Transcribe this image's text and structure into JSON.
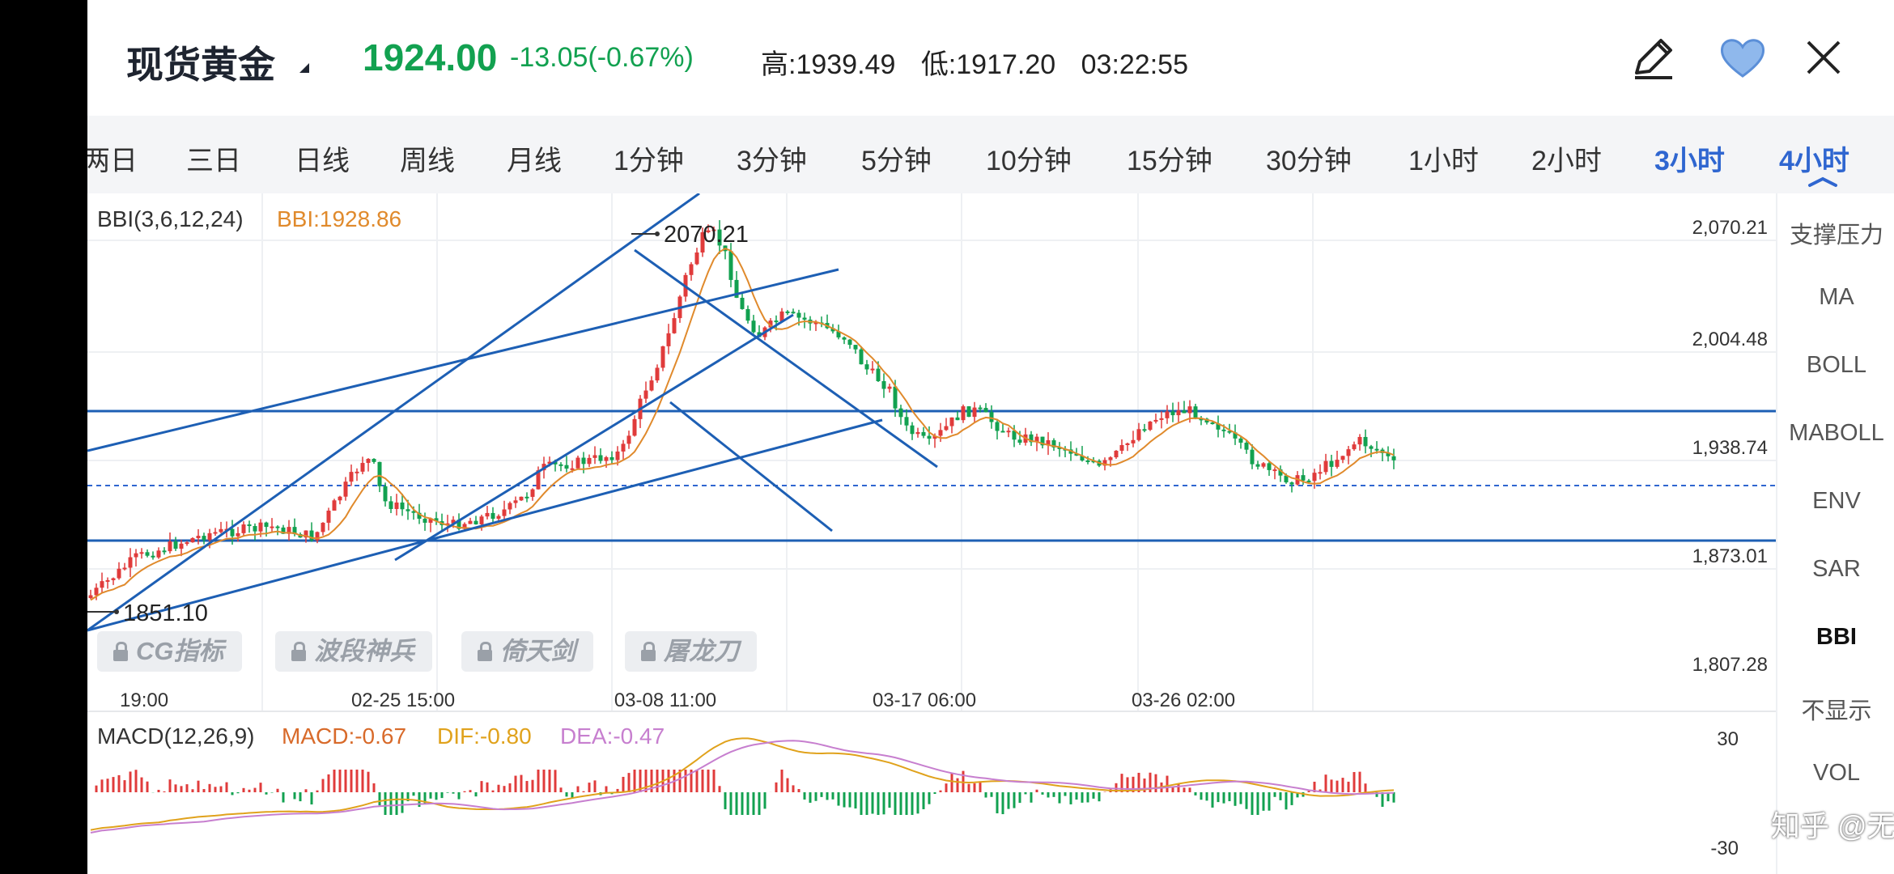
{
  "header": {
    "title": "现货黄金",
    "price": "1924.00",
    "change": "-13.05(-0.67%)",
    "high": "高:1939.49",
    "low": "低:1917.20",
    "time": "03:22:55",
    "icons": [
      "edit-icon",
      "heart-icon",
      "close-icon"
    ]
  },
  "tabs": [
    "两日",
    "三日",
    "日线",
    "周线",
    "月线",
    "1分钟",
    "3分钟",
    "5分钟",
    "10分钟",
    "15分钟",
    "30分钟",
    "1小时",
    "2小时",
    "3小时",
    "4小时"
  ],
  "active_tab": "4小时",
  "main_chart": {
    "indicator_label": "BBI(3,6,12,24)",
    "indicator_value": "BBI:1928.86",
    "max_marker": "2070.21",
    "min_marker": "1851.10",
    "y_ticks": [
      "2,070.21",
      "2,004.48",
      "1,938.74",
      "1,873.01",
      "1,807.28"
    ],
    "x_ticks": [
      "19:00",
      "02-25 15:00",
      "03-08 11:00",
      "03-17 06:00",
      "03-26 02:00"
    ]
  },
  "macd": {
    "label": "MACD(12,26,9)",
    "macd": "MACD:-0.67",
    "dif": "DIF:-0.80",
    "dea": "DEA:-0.47",
    "y_ticks": [
      "30",
      "-30"
    ]
  },
  "locked_indicators": [
    "CG指标",
    "波段神兵",
    "倚天剑",
    "屠龙刀"
  ],
  "right_panel": [
    "支撑压力",
    "MA",
    "BOLL",
    "MABOLL",
    "ENV",
    "SAR",
    "BBI",
    "不显示",
    "VOL"
  ],
  "right_panel_active": "BBI",
  "watermark": "知乎 @无声的梦",
  "colors": {
    "down_green": "#12a150",
    "up_red": "#e03b3b",
    "accent_blue": "#2f66d0",
    "trendline": "#1d5fb4",
    "bbi_line": "#e08a2c",
    "dif_line": "#e0a21c",
    "dea_line": "#c77fcf"
  }
}
